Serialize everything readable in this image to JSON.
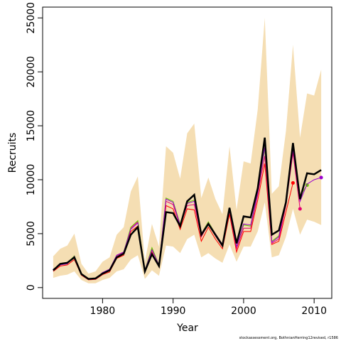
{
  "chart_data": {
    "type": "line",
    "xlabel": "Year",
    "ylabel": "Recruits",
    "source": "stockassessment.org, BothnianHerring12revised, r1586",
    "x": [
      1973,
      1974,
      1975,
      1976,
      1977,
      1978,
      1979,
      1980,
      1981,
      1982,
      1983,
      1984,
      1985,
      1986,
      1987,
      1988,
      1989,
      1990,
      1991,
      1992,
      1993,
      1994,
      1995,
      1996,
      1997,
      1998,
      1999,
      2000,
      2001,
      2002,
      2003,
      2004,
      2005,
      2006,
      2007,
      2008,
      2009,
      2010,
      2011
    ],
    "band_color": "#f5deb3",
    "band_upper": [
      2900,
      3600,
      3900,
      5000,
      2200,
      1300,
      1500,
      2400,
      2800,
      4900,
      5600,
      8900,
      10300,
      2400,
      5900,
      3800,
      13100,
      12500,
      10100,
      14300,
      15200,
      8300,
      10200,
      8200,
      6800,
      13100,
      7200,
      11700,
      11500,
      16500,
      25000,
      8700,
      9400,
      14500,
      22500,
      13900,
      18000,
      17800,
      20200
    ],
    "band_lower": [
      900,
      1100,
      1200,
      1500,
      700,
      400,
      400,
      700,
      900,
      1500,
      1700,
      2600,
      3000,
      800,
      1600,
      1100,
      3900,
      3800,
      3200,
      4500,
      4900,
      2800,
      3200,
      2700,
      2300,
      4000,
      2400,
      3800,
      3800,
      5200,
      7900,
      2800,
      3000,
      4700,
      7300,
      4900,
      6300,
      6100,
      5800
    ],
    "series": [
      {
        "color": "#ff0000",
        "width": 1,
        "marker_last": true,
        "values": [
          1500,
          2000,
          2100,
          2600,
          1150,
          720,
          760,
          1200,
          1450,
          2700,
          3000,
          5200,
          5700,
          1400,
          3300,
          1900,
          7600,
          7300,
          5400,
          7300,
          7200,
          4300,
          5600,
          4500,
          3600,
          6800,
          3300,
          5200,
          5200,
          8100,
          11500,
          4000,
          4300,
          7000,
          9700,
          null,
          null,
          null,
          null
        ]
      },
      {
        "color": "#e4006f",
        "width": 1,
        "marker_last": true,
        "values": [
          1650,
          2100,
          2250,
          2900,
          1200,
          760,
          800,
          1350,
          1600,
          2950,
          3250,
          5500,
          6100,
          1550,
          3600,
          2050,
          8000,
          7700,
          5700,
          7600,
          7700,
          4700,
          5900,
          4800,
          3800,
          7100,
          3600,
          5500,
          5500,
          8600,
          12200,
          4100,
          4500,
          7600,
          12500,
          7300,
          null,
          null,
          null
        ]
      },
      {
        "color": "#66cc00",
        "width": 1,
        "marker_last": true,
        "values": [
          1700,
          2150,
          2250,
          2950,
          1200,
          760,
          810,
          1400,
          1650,
          3000,
          3300,
          5600,
          6200,
          1600,
          3700,
          2100,
          8300,
          8000,
          5900,
          7900,
          8100,
          5000,
          6100,
          5000,
          4000,
          7300,
          3800,
          5800,
          5700,
          8900,
          12800,
          4300,
          4800,
          8000,
          12900,
          8500,
          9500,
          null,
          null
        ]
      },
      {
        "color": "#9900cc",
        "width": 1,
        "marker_last": true,
        "values": [
          1700,
          2100,
          2200,
          2900,
          1200,
          750,
          800,
          1400,
          1700,
          3000,
          3300,
          5400,
          6000,
          1600,
          3500,
          2100,
          8200,
          7900,
          5800,
          7800,
          8000,
          5000,
          6000,
          5000,
          4000,
          7200,
          3800,
          5900,
          5800,
          8800,
          13000,
          4200,
          4700,
          8000,
          12800,
          8000,
          9600,
          10000,
          10200
        ]
      },
      {
        "color": "#000000",
        "width": 2.5,
        "marker_last": false,
        "values": [
          1600,
          2200,
          2300,
          2800,
          1250,
          800,
          850,
          1300,
          1600,
          2800,
          3150,
          4900,
          5600,
          1500,
          3100,
          2000,
          7000,
          6900,
          5700,
          8000,
          8600,
          4900,
          5900,
          4900,
          3900,
          7400,
          4100,
          6600,
          6500,
          9200,
          13900,
          4900,
          5300,
          7900,
          13400,
          8200,
          10600,
          10500,
          10900
        ]
      }
    ],
    "xlim": [
      1971.5,
      2012.5
    ],
    "ylim": [
      -1000,
      26000
    ],
    "xticks": [
      1980,
      1990,
      2000,
      2010
    ],
    "yticks": [
      0,
      5000,
      10000,
      15000,
      20000,
      25000
    ]
  }
}
